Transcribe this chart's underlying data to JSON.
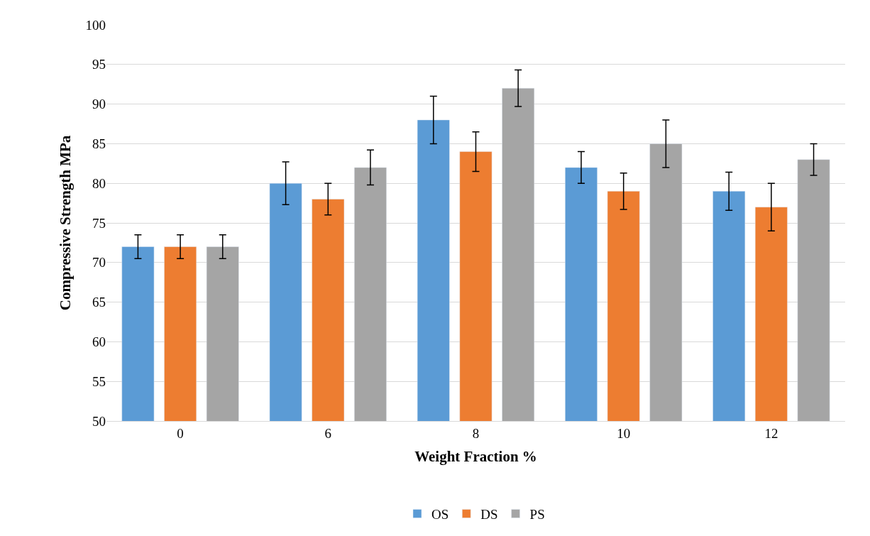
{
  "chart_data": {
    "type": "bar",
    "xlabel": "Weight Fraction %",
    "ylabel": "Compressive Strength MPa",
    "categories": [
      "0",
      "6",
      "8",
      "10",
      "12"
    ],
    "series": [
      {
        "name": "OS",
        "color": "#5b9bd5",
        "values": [
          72,
          80,
          88,
          82,
          79
        ],
        "errors": [
          1.5,
          2.7,
          3,
          2,
          2.4
        ]
      },
      {
        "name": "DS",
        "color": "#ed7d31",
        "values": [
          72,
          78,
          84,
          79,
          77
        ],
        "errors": [
          1.5,
          2,
          2.5,
          2.3,
          3
        ]
      },
      {
        "name": "PS",
        "color": "#a5a5a5",
        "values": [
          72,
          82,
          92,
          85,
          83
        ],
        "errors": [
          1.5,
          2.2,
          2.3,
          3,
          2
        ]
      }
    ],
    "ylim": [
      50,
      100
    ],
    "yticks": [
      50,
      55,
      60,
      65,
      70,
      75,
      80,
      85,
      90,
      95,
      100
    ],
    "grid": "y",
    "legend": "bottom"
  }
}
